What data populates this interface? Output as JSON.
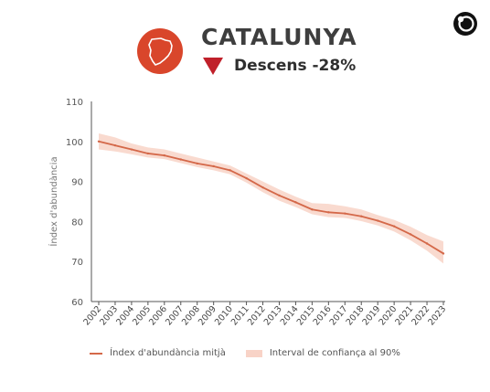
{
  "header": {
    "region": "CATALUNYA",
    "trend_label": "Descens -28%",
    "trend_direction": "down",
    "trend_color": "#c0202a",
    "badge_color": "#d9462b",
    "icons": [
      "catalonia-map-icon",
      "down-triangle-icon",
      "brand-logo-icon"
    ]
  },
  "chart_data": {
    "type": "line",
    "title": "",
    "xlabel": "",
    "ylabel": "Índex d'abundància",
    "ylim": [
      60,
      110
    ],
    "yticks": [
      60,
      70,
      80,
      90,
      100,
      110
    ],
    "grid": false,
    "legend_position": "bottom",
    "x": [
      "2002",
      "2003",
      "2004",
      "2005",
      "2006",
      "2007",
      "2008",
      "2009",
      "2010",
      "2011",
      "2012",
      "2013",
      "2014",
      "2015",
      "2016",
      "2017",
      "2018",
      "2019",
      "2020",
      "2021",
      "2022",
      "2023"
    ],
    "series": [
      {
        "name": "Índex d'abundància mitjà",
        "color": "#d46849",
        "values": [
          100,
          99,
          98,
          97,
          96.5,
          95.5,
          94.5,
          93.8,
          92.8,
          90.8,
          88.5,
          86.5,
          84.8,
          83,
          82.3,
          82,
          81.3,
          80.2,
          78.8,
          76.8,
          74.5,
          72
        ]
      },
      {
        "name": "Interval de confiança al 90%",
        "color": "#f8d3c7",
        "lower": [
          98,
          97.5,
          96.8,
          96,
          95.6,
          94.6,
          93.6,
          92.8,
          91.8,
          89.7,
          87.3,
          85.2,
          83.6,
          81.8,
          81.1,
          80.9,
          80.1,
          79,
          77.5,
          75.3,
          72.7,
          69.5
        ],
        "upper": [
          102,
          101,
          99.5,
          98.5,
          98,
          97,
          96,
          95,
          94,
          92,
          90,
          88,
          86.2,
          84.6,
          84.4,
          83.8,
          83,
          81.6,
          80.4,
          78.7,
          76.6,
          75
        ]
      }
    ]
  }
}
